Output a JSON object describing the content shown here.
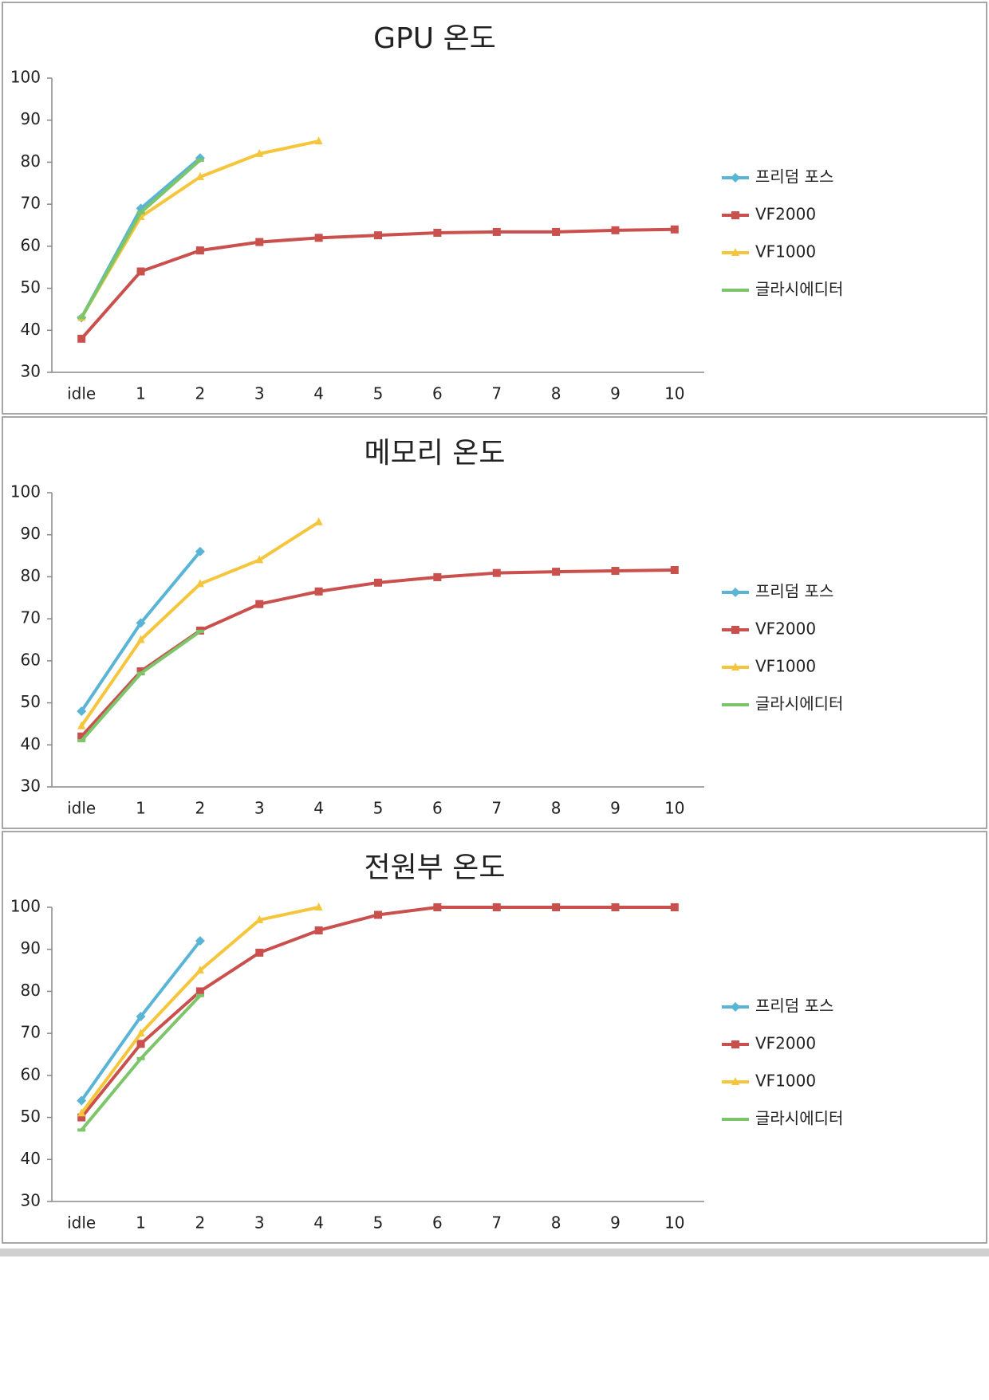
{
  "chart_data": [
    {
      "type": "line",
      "title": "GPU 온도",
      "categories": [
        "idle",
        "1",
        "2",
        "3",
        "4",
        "5",
        "6",
        "7",
        "8",
        "9",
        "10"
      ],
      "ylim": [
        30,
        100
      ],
      "yticks": [
        30,
        40,
        50,
        60,
        70,
        80,
        90,
        100
      ],
      "grid": false,
      "legend": "right",
      "series": [
        {
          "name": "프리덤 포스",
          "color": "#5ab4d6",
          "marker": "diamond",
          "values": [
            43,
            69,
            81,
            null,
            null,
            null,
            null,
            null,
            null,
            null,
            null
          ]
        },
        {
          "name": "VF2000",
          "color": "#c9504d",
          "marker": "square",
          "values": [
            38,
            54,
            59,
            61,
            62,
            62.6,
            63.2,
            63.4,
            63.4,
            63.8,
            64
          ]
        },
        {
          "name": "VF1000",
          "color": "#f5c63c",
          "marker": "triangle",
          "values": [
            43,
            67,
            76.5,
            82,
            85,
            null,
            null,
            null,
            null,
            null,
            null
          ]
        },
        {
          "name": "글라시에디터",
          "color": "#7cc56a",
          "marker": "dash",
          "values": [
            43,
            68,
            80.5,
            null,
            null,
            null,
            null,
            null,
            null,
            null,
            null
          ]
        }
      ]
    },
    {
      "type": "line",
      "title": "메모리 온도",
      "categories": [
        "idle",
        "1",
        "2",
        "3",
        "4",
        "5",
        "6",
        "7",
        "8",
        "9",
        "10"
      ],
      "ylim": [
        30,
        100
      ],
      "yticks": [
        30,
        40,
        50,
        60,
        70,
        80,
        90,
        100
      ],
      "grid": false,
      "legend": "right",
      "series": [
        {
          "name": "프리덤 포스",
          "color": "#5ab4d6",
          "marker": "diamond",
          "values": [
            48,
            69,
            86,
            null,
            null,
            null,
            null,
            null,
            null,
            null,
            null
          ]
        },
        {
          "name": "VF2000",
          "color": "#c9504d",
          "marker": "square",
          "values": [
            42,
            57.5,
            67.2,
            73.5,
            76.5,
            78.6,
            79.9,
            80.9,
            81.2,
            81.4,
            81.6
          ]
        },
        {
          "name": "VF1000",
          "color": "#f5c63c",
          "marker": "triangle",
          "values": [
            44.5,
            65,
            78.3,
            84,
            93,
            null,
            null,
            null,
            null,
            null,
            null
          ]
        },
        {
          "name": "글라시에디터",
          "color": "#7cc56a",
          "marker": "dash",
          "values": [
            41,
            57,
            67,
            null,
            null,
            null,
            null,
            null,
            null,
            null,
            null
          ]
        }
      ]
    },
    {
      "type": "line",
      "title": "전원부 온도",
      "categories": [
        "idle",
        "1",
        "2",
        "3",
        "4",
        "5",
        "6",
        "7",
        "8",
        "9",
        "10"
      ],
      "ylim": [
        30,
        100
      ],
      "yticks": [
        30,
        40,
        50,
        60,
        70,
        80,
        90,
        100
      ],
      "grid": false,
      "legend": "right",
      "series": [
        {
          "name": "프리덤 포스",
          "color": "#5ab4d6",
          "marker": "diamond",
          "values": [
            54,
            74,
            92,
            null,
            null,
            null,
            null,
            null,
            null,
            null,
            null
          ]
        },
        {
          "name": "VF2000",
          "color": "#c9504d",
          "marker": "square",
          "values": [
            50,
            67.5,
            80,
            89.2,
            94.5,
            98.2,
            100,
            100,
            100,
            100,
            100
          ]
        },
        {
          "name": "VF1000",
          "color": "#f5c63c",
          "marker": "triangle",
          "values": [
            51,
            70,
            85,
            97,
            100,
            null,
            null,
            null,
            null,
            null,
            null
          ]
        },
        {
          "name": "글라시에디터",
          "color": "#7cc56a",
          "marker": "dash",
          "values": [
            47,
            64,
            79,
            null,
            null,
            null,
            null,
            null,
            null,
            null,
            null
          ]
        }
      ]
    }
  ]
}
